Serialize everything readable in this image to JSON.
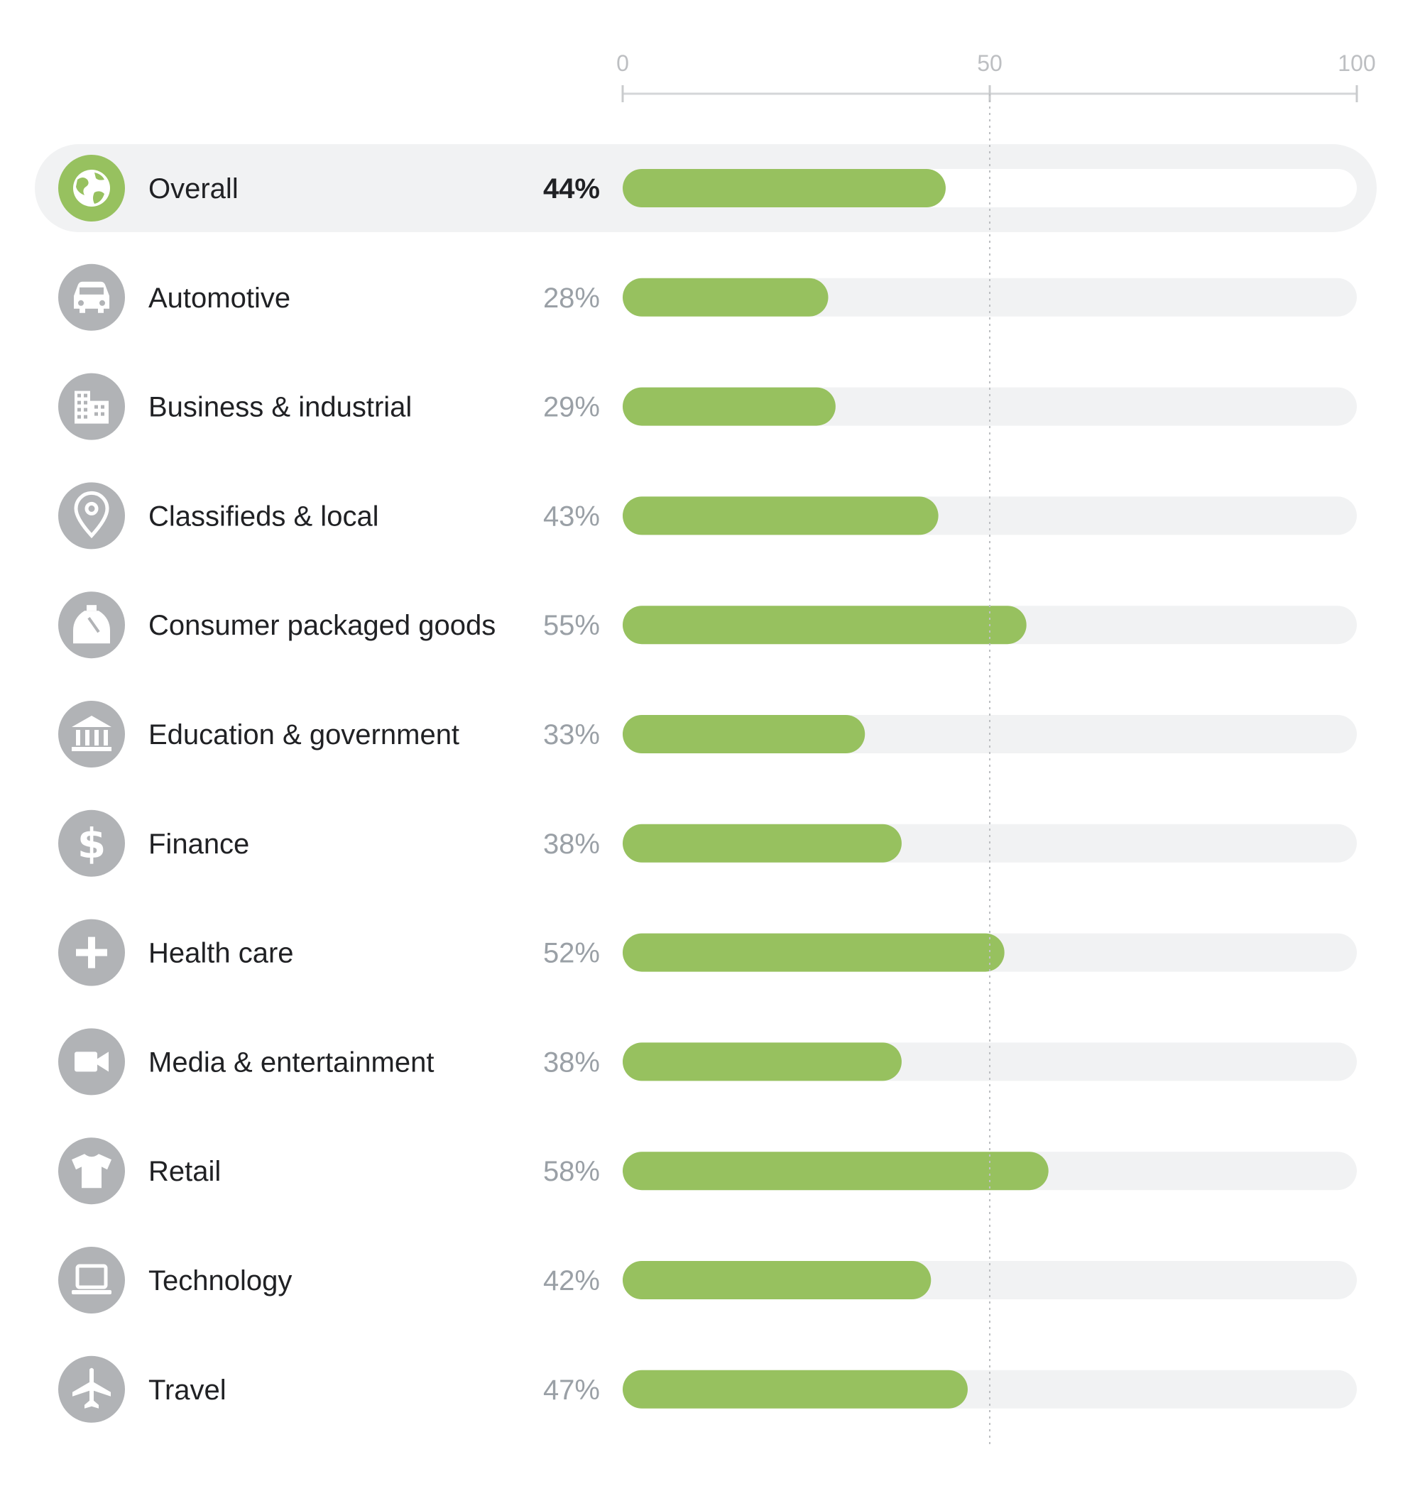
{
  "chart_data": {
    "type": "bar",
    "orientation": "horizontal",
    "title": "",
    "xlabel": "",
    "ylabel": "",
    "xlim": [
      0,
      100
    ],
    "ticks": [
      "0",
      "50",
      "100"
    ],
    "tick_values": [
      0,
      50,
      100
    ],
    "reference_line": 50,
    "bar_color": "#97C15F",
    "track_color": "#F1F2F3",
    "icon_color_default": "#B1B3B6",
    "icon_color_highlight": "#97C15F",
    "categories": [
      {
        "label": "Overall",
        "value": 44,
        "value_label": "44%",
        "icon": "globe-icon",
        "highlight": true
      },
      {
        "label": "Automotive",
        "value": 28,
        "value_label": "28%",
        "icon": "car-icon",
        "highlight": false
      },
      {
        "label": "Business & industrial",
        "value": 29,
        "value_label": "29%",
        "icon": "building-icon",
        "highlight": false
      },
      {
        "label": "Classifieds & local",
        "value": 43,
        "value_label": "43%",
        "icon": "map-pin-icon",
        "highlight": false
      },
      {
        "label": "Consumer packaged goods",
        "value": 55,
        "value_label": "55%",
        "icon": "bottle-icon",
        "highlight": false
      },
      {
        "label": "Education & government",
        "value": 33,
        "value_label": "33%",
        "icon": "bank-icon",
        "highlight": false
      },
      {
        "label": "Finance",
        "value": 38,
        "value_label": "38%",
        "icon": "dollar-icon",
        "highlight": false
      },
      {
        "label": "Health care",
        "value": 52,
        "value_label": "52%",
        "icon": "plus-icon",
        "highlight": false
      },
      {
        "label": "Media & entertainment",
        "value": 38,
        "value_label": "38%",
        "icon": "video-camera-icon",
        "highlight": false
      },
      {
        "label": "Retail",
        "value": 58,
        "value_label": "58%",
        "icon": "shirt-icon",
        "highlight": false
      },
      {
        "label": "Technology",
        "value": 42,
        "value_label": "42%",
        "icon": "laptop-icon",
        "highlight": false
      },
      {
        "label": "Travel",
        "value": 47,
        "value_label": "47%",
        "icon": "airplane-icon",
        "highlight": false
      }
    ]
  }
}
